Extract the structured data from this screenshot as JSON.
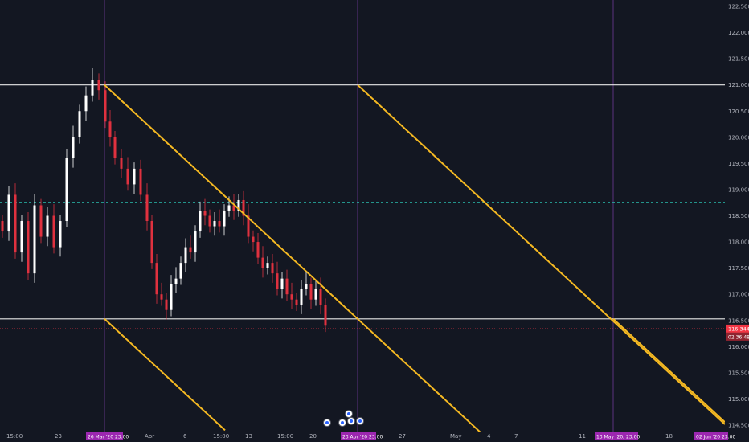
{
  "chart_data": {
    "type": "candlestick",
    "instrument_price": {
      "last": "116.344",
      "countdown": "02:36:48"
    },
    "colors": {
      "background": "#131722",
      "up": "#ffffff",
      "down": "#e0313f",
      "channel_lines": "#f5b922",
      "level_lines": "#e8e8e8",
      "dashed_level": "#26a69a",
      "vertical_markers": "#7b3fa8",
      "date_badge": "#9c27b0",
      "price_badge": "#f23645"
    },
    "y_axis": {
      "ylim": [
        114.5,
        122.5
      ],
      "ticks": [
        "122.500",
        "122.000",
        "121.500",
        "121.000",
        "120.500",
        "120.000",
        "119.500",
        "119.000",
        "118.500",
        "118.000",
        "117.500",
        "117.000",
        "116.500",
        "116.000",
        "115.500",
        "115.000",
        "114.500"
      ]
    },
    "x_axis": {
      "ticks": [
        "15:00",
        "23",
        "Apr",
        "6",
        "15:00",
        "13",
        "15:00",
        "20",
        "27",
        "May",
        "4",
        "7",
        "11",
        "18"
      ],
      "badges": [
        "26 Mar '20  23:00",
        "23 Apr '20  23:00",
        "13 May '20,  23:00",
        "02 Jun '20  23:00"
      ]
    },
    "horizontal_levels": [
      121.0,
      116.53
    ],
    "dashed_level": 118.76,
    "current_price_line": 116.344
  }
}
